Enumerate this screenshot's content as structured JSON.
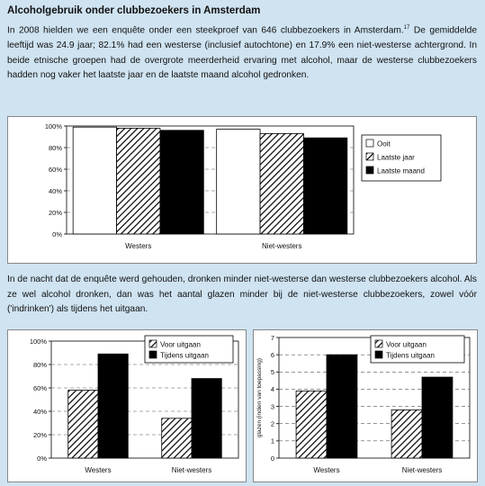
{
  "heading": "Alcoholgebruik onder clubbezoekers in Amsterdam",
  "paragraph1": {
    "line1_text": "In 2008 hielden we een enquête onder een steekproef van 646 clubbezoekers in Amsterdam.",
    "line1_sup": "17",
    "rest": "De gemiddelde leeftijd was 24.9 jaar; 82.1% had een westerse (inclusief autochtone) en 17.9% een niet-westerse achtergrond. In beide etnische groepen had de overgrote meerderheid ervaring met alcohol, maar de westerse clubbezoekers hadden nog vaker het laatste jaar en de laatste maand alcohol gedronken."
  },
  "paragraph2": "In de nacht dat de enquête werd gehouden, dronken minder niet-westerse dan westerse clubbezoekers alcohol. Als ze wel alcohol dronken, dan was het aantal glazen minder bij de niet-westerse clubbezoekers, zowel vóór ('indrinken') als tijdens het uitgaan.",
  "chart_data": [
    {
      "type": "bar",
      "categories": [
        "Westers",
        "Niet-westers"
      ],
      "series": [
        {
          "name": "Ooit",
          "values": [
            99,
            97
          ],
          "pattern": "white"
        },
        {
          "name": "Laatste jaar",
          "values": [
            98,
            93
          ],
          "pattern": "hatch"
        },
        {
          "name": "Laatste maand",
          "values": [
            96,
            89
          ],
          "pattern": "black"
        }
      ],
      "ylim": [
        0,
        100
      ],
      "yticks": [
        "0%",
        "20%",
        "40%",
        "60%",
        "80%",
        "100%"
      ],
      "grid": true,
      "legend": "right"
    },
    {
      "type": "bar",
      "categories": [
        "Westers",
        "Niet-westers"
      ],
      "series": [
        {
          "name": "Voor uitgaan",
          "values": [
            58,
            34
          ],
          "pattern": "hatch"
        },
        {
          "name": "Tijdens uitgaan",
          "values": [
            89,
            68
          ],
          "pattern": "black"
        }
      ],
      "ylim": [
        0,
        100
      ],
      "yticks": [
        "0%",
        "20%",
        "40%",
        "60%",
        "80%",
        "100%"
      ],
      "grid": true,
      "legend": "top-right"
    },
    {
      "type": "bar",
      "categories": [
        "Westers",
        "Niet-westers"
      ],
      "series": [
        {
          "name": "Voor uitgaan",
          "values": [
            3.9,
            2.8
          ],
          "pattern": "hatch"
        },
        {
          "name": "Tijdens uitgaan",
          "values": [
            6.0,
            4.7
          ],
          "pattern": "black"
        }
      ],
      "ylabel": "glazen (indien van toepassing)",
      "ylim": [
        0,
        7
      ],
      "yticks": [
        "0",
        "1",
        "2",
        "3",
        "4",
        "5",
        "6",
        "7"
      ],
      "grid": true,
      "legend": "top-right"
    }
  ]
}
